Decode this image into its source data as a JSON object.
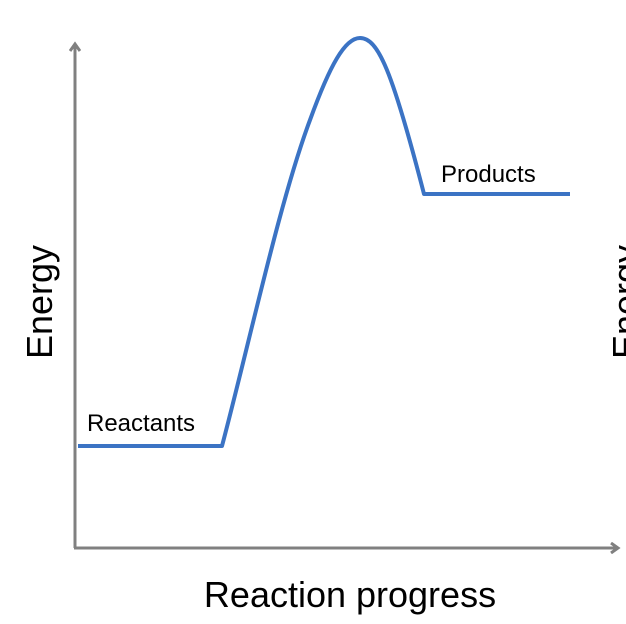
{
  "diagram": {
    "y_axis_label": "Energy",
    "x_axis_label": "Reaction progress",
    "reactants_label": "Reactants",
    "products_label": "Products",
    "right_partial_label": "Energy",
    "curve_color": "#3b73c4",
    "axis_color": "#808080"
  }
}
